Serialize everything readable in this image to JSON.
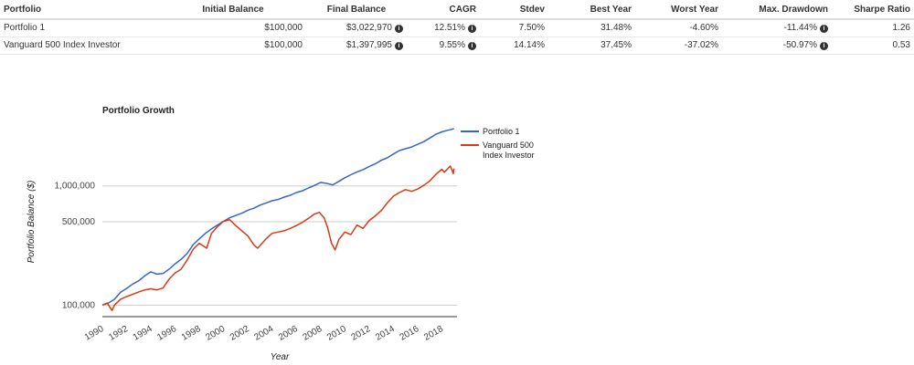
{
  "table": {
    "headers": [
      "Portfolio",
      "Initial Balance",
      "Final Balance",
      "CAGR",
      "Stdev",
      "Best Year",
      "Worst Year",
      "Max. Drawdown",
      "Sharpe Ratio"
    ],
    "rows": [
      {
        "portfolio": "Portfolio 1",
        "initial_balance": "$100,000",
        "final_balance": "$3,022,970",
        "cagr": "12.51%",
        "stdev": "7.50%",
        "best_year": "31.48%",
        "worst_year": "-4.60%",
        "max_drawdown": "-11.44%",
        "sharpe_ratio": "1.26"
      },
      {
        "portfolio": "Vanguard 500 Index Investor",
        "initial_balance": "$100,000",
        "final_balance": "$1,397,995",
        "cagr": "9.55%",
        "stdev": "14.14%",
        "best_year": "37.45%",
        "worst_year": "-37.02%",
        "max_drawdown": "-50.97%",
        "sharpe_ratio": "0.53"
      }
    ],
    "info_icon": "info-circle-icon"
  },
  "chart_data": {
    "type": "line",
    "title": "Portfolio Growth",
    "xlabel": "Year",
    "ylabel": "Portfolio Balance ($)",
    "y_scale": "log",
    "xlim": [
      1990.0,
      2019.25
    ],
    "ylim": [
      80000,
      3300000
    ],
    "x_ticks": [
      "1990",
      "1992",
      "1994",
      "1996",
      "1998",
      "2000",
      "2002",
      "2004",
      "2006",
      "2008",
      "2010",
      "2012",
      "2014",
      "2016",
      "2018"
    ],
    "y_ticks": [
      {
        "value": 100000,
        "label": "100,000"
      },
      {
        "value": 500000,
        "label": "500,000"
      },
      {
        "value": 1000000,
        "label": "1,000,000"
      }
    ],
    "grid": "horizontal",
    "legend_position": "top-right",
    "series": [
      {
        "name": "Portfolio 1",
        "color": "#3366cc",
        "points": [
          [
            1990.0,
            100000
          ],
          [
            1990.5,
            104000
          ],
          [
            1991.0,
            112000
          ],
          [
            1991.5,
            128000
          ],
          [
            1992.0,
            138000
          ],
          [
            1992.5,
            150000
          ],
          [
            1993.0,
            160000
          ],
          [
            1993.5,
            176000
          ],
          [
            1994.0,
            190000
          ],
          [
            1994.5,
            182000
          ],
          [
            1995.0,
            184000
          ],
          [
            1995.5,
            200000
          ],
          [
            1996.0,
            222000
          ],
          [
            1996.5,
            242000
          ],
          [
            1997.0,
            272000
          ],
          [
            1997.5,
            322000
          ],
          [
            1998.0,
            360000
          ],
          [
            1998.5,
            400000
          ],
          [
            1999.0,
            436000
          ],
          [
            1999.5,
            470000
          ],
          [
            2000.0,
            505000
          ],
          [
            2000.5,
            540000
          ],
          [
            2001.0,
            565000
          ],
          [
            2001.5,
            590000
          ],
          [
            2002.0,
            625000
          ],
          [
            2002.5,
            650000
          ],
          [
            2003.0,
            690000
          ],
          [
            2003.5,
            720000
          ],
          [
            2004.0,
            750000
          ],
          [
            2004.5,
            770000
          ],
          [
            2005.0,
            805000
          ],
          [
            2005.5,
            835000
          ],
          [
            2006.0,
            880000
          ],
          [
            2006.5,
            910000
          ],
          [
            2007.0,
            960000
          ],
          [
            2007.5,
            1010000
          ],
          [
            2008.0,
            1070000
          ],
          [
            2008.5,
            1050000
          ],
          [
            2009.0,
            1020000
          ],
          [
            2009.5,
            1090000
          ],
          [
            2010.0,
            1170000
          ],
          [
            2010.5,
            1240000
          ],
          [
            2011.0,
            1310000
          ],
          [
            2011.5,
            1370000
          ],
          [
            2012.0,
            1450000
          ],
          [
            2012.5,
            1530000
          ],
          [
            2013.0,
            1640000
          ],
          [
            2013.5,
            1720000
          ],
          [
            2014.0,
            1850000
          ],
          [
            2014.5,
            1980000
          ],
          [
            2015.0,
            2050000
          ],
          [
            2015.5,
            2120000
          ],
          [
            2016.0,
            2230000
          ],
          [
            2016.5,
            2350000
          ],
          [
            2017.0,
            2520000
          ],
          [
            2017.5,
            2710000
          ],
          [
            2018.0,
            2840000
          ],
          [
            2018.5,
            2930000
          ],
          [
            2018.8,
            2980000
          ],
          [
            2019.0,
            3022970
          ]
        ]
      },
      {
        "name": "Vanguard 500 Index Investor",
        "color": "#dc3912",
        "points": [
          [
            1990.0,
            100000
          ],
          [
            1990.4,
            104000
          ],
          [
            1990.8,
            90000
          ],
          [
            1991.0,
            100000
          ],
          [
            1991.5,
            112000
          ],
          [
            1992.0,
            118000
          ],
          [
            1992.5,
            123000
          ],
          [
            1993.0,
            129000
          ],
          [
            1993.5,
            134000
          ],
          [
            1994.0,
            137000
          ],
          [
            1994.5,
            134000
          ],
          [
            1995.0,
            139000
          ],
          [
            1995.5,
            165000
          ],
          [
            1996.0,
            186000
          ],
          [
            1996.5,
            200000
          ],
          [
            1997.0,
            240000
          ],
          [
            1997.5,
            295000
          ],
          [
            1998.0,
            330000
          ],
          [
            1998.6,
            300000
          ],
          [
            1999.0,
            400000
          ],
          [
            1999.5,
            455000
          ],
          [
            2000.0,
            505000
          ],
          [
            2000.5,
            520000
          ],
          [
            2001.0,
            465000
          ],
          [
            2001.5,
            420000
          ],
          [
            2002.0,
            380000
          ],
          [
            2002.5,
            320000
          ],
          [
            2002.8,
            300000
          ],
          [
            2003.0,
            315000
          ],
          [
            2003.5,
            360000
          ],
          [
            2004.0,
            400000
          ],
          [
            2004.5,
            410000
          ],
          [
            2005.0,
            420000
          ],
          [
            2005.5,
            440000
          ],
          [
            2006.0,
            465000
          ],
          [
            2006.5,
            495000
          ],
          [
            2007.0,
            535000
          ],
          [
            2007.5,
            580000
          ],
          [
            2007.9,
            600000
          ],
          [
            2008.3,
            540000
          ],
          [
            2008.6,
            440000
          ],
          [
            2008.9,
            330000
          ],
          [
            2009.2,
            290000
          ],
          [
            2009.5,
            355000
          ],
          [
            2010.0,
            410000
          ],
          [
            2010.5,
            390000
          ],
          [
            2011.0,
            470000
          ],
          [
            2011.5,
            440000
          ],
          [
            2012.0,
            510000
          ],
          [
            2012.5,
            560000
          ],
          [
            2013.0,
            620000
          ],
          [
            2013.5,
            720000
          ],
          [
            2014.0,
            820000
          ],
          [
            2014.5,
            880000
          ],
          [
            2015.0,
            930000
          ],
          [
            2015.5,
            900000
          ],
          [
            2016.0,
            940000
          ],
          [
            2016.5,
            1010000
          ],
          [
            2017.0,
            1100000
          ],
          [
            2017.5,
            1250000
          ],
          [
            2018.0,
            1380000
          ],
          [
            2018.2,
            1300000
          ],
          [
            2018.7,
            1470000
          ],
          [
            2018.95,
            1270000
          ],
          [
            2019.0,
            1397995
          ]
        ]
      }
    ]
  }
}
